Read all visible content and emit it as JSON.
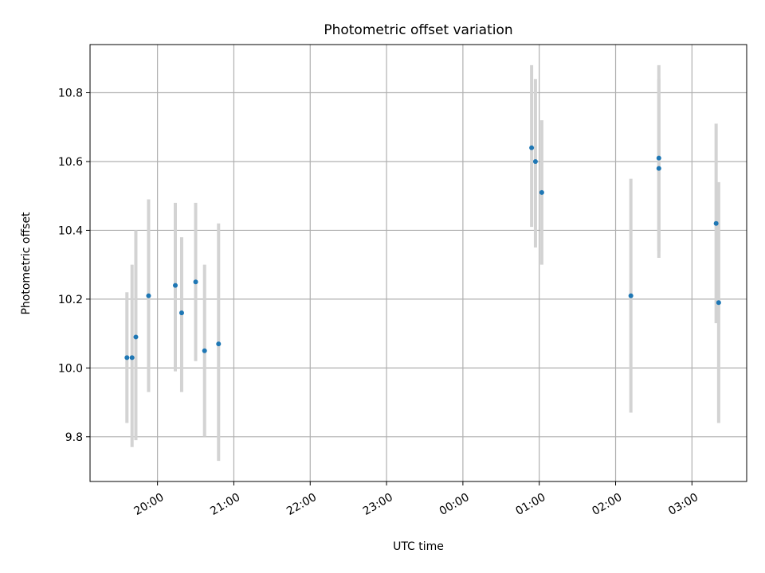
{
  "chart_data": {
    "type": "scatter",
    "title": "Photometric offset variation",
    "xlabel": "UTC time",
    "ylabel": "Photometric offset",
    "x_axis": "time (HH:MM, UTC)",
    "xlim": [
      "19:07",
      "03:43"
    ],
    "ylim": [
      9.67,
      10.94
    ],
    "grid": true,
    "x_ticks": [
      "20:00",
      "21:00",
      "22:00",
      "23:00",
      "00:00",
      "01:00",
      "02:00",
      "03:00"
    ],
    "y_ticks": [
      9.8,
      10.0,
      10.2,
      10.4,
      10.6,
      10.8
    ],
    "point_color": "#1f77b4",
    "errorbar_color": "#d3d3d3",
    "points": [
      {
        "x": "19:36",
        "y": 10.03,
        "low": 9.84,
        "high": 10.22
      },
      {
        "x": "19:40",
        "y": 10.03,
        "low": 9.77,
        "high": 10.3
      },
      {
        "x": "19:43",
        "y": 10.09,
        "low": 9.79,
        "high": 10.4
      },
      {
        "x": "19:53",
        "y": 10.21,
        "low": 9.93,
        "high": 10.49
      },
      {
        "x": "20:14",
        "y": 10.24,
        "low": 9.99,
        "high": 10.48
      },
      {
        "x": "20:19",
        "y": 10.16,
        "low": 9.93,
        "high": 10.38
      },
      {
        "x": "20:30",
        "y": 10.25,
        "low": 10.02,
        "high": 10.48
      },
      {
        "x": "20:37",
        "y": 10.05,
        "low": 9.8,
        "high": 10.3
      },
      {
        "x": "20:48",
        "y": 10.07,
        "low": 9.73,
        "high": 10.42
      },
      {
        "x": "00:54",
        "y": 10.64,
        "low": 10.41,
        "high": 10.88
      },
      {
        "x": "00:57",
        "y": 10.6,
        "low": 10.35,
        "high": 10.84
      },
      {
        "x": "01:02",
        "y": 10.51,
        "low": 10.3,
        "high": 10.72
      },
      {
        "x": "02:12",
        "y": 10.21,
        "low": 9.87,
        "high": 10.55
      },
      {
        "x": "02:34",
        "y": 10.61,
        "low": 10.34,
        "high": 10.88
      },
      {
        "x": "02:34",
        "y": 10.58,
        "low": 10.32,
        "high": 10.84
      },
      {
        "x": "03:19",
        "y": 10.42,
        "low": 10.13,
        "high": 10.71
      },
      {
        "x": "03:21",
        "y": 10.19,
        "low": 9.84,
        "high": 10.54
      }
    ]
  }
}
